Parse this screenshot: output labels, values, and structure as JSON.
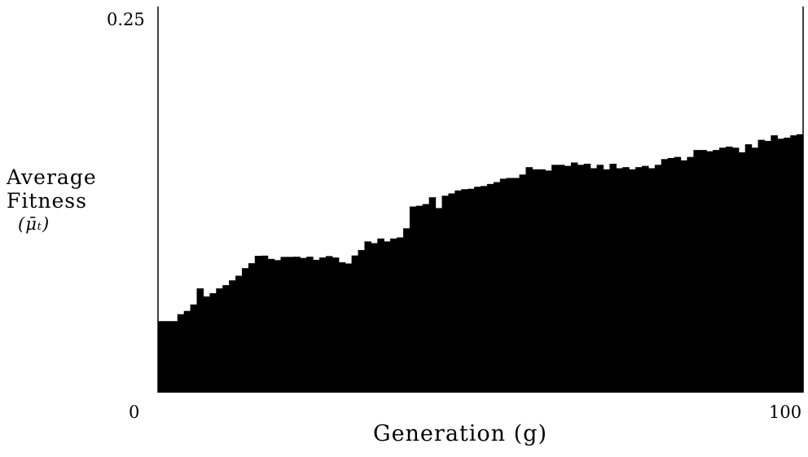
{
  "chart_data": {
    "type": "bar",
    "xlabel": "Generation (g)",
    "ylabel_lines": [
      "Average",
      "Fitness",
      "(μ̄ₜ)"
    ],
    "x_range": [
      0,
      100
    ],
    "ylim": [
      0,
      0.25
    ],
    "x_tick_labels": [
      "0",
      "100"
    ],
    "y_tick_labels": [
      "0",
      "0.25"
    ],
    "grid": false,
    "legend": "none",
    "bar_color": "#000000",
    "x": [
      1,
      2,
      3,
      4,
      5,
      6,
      7,
      8,
      9,
      10,
      11,
      12,
      13,
      14,
      15,
      16,
      17,
      18,
      19,
      20,
      21,
      22,
      23,
      24,
      25,
      26,
      27,
      28,
      29,
      30,
      31,
      32,
      33,
      34,
      35,
      36,
      37,
      38,
      39,
      40,
      41,
      42,
      43,
      44,
      45,
      46,
      47,
      48,
      49,
      50,
      51,
      52,
      53,
      54,
      55,
      56,
      57,
      58,
      59,
      60,
      61,
      62,
      63,
      64,
      65,
      66,
      67,
      68,
      69,
      70,
      71,
      72,
      73,
      74,
      75,
      76,
      77,
      78,
      79,
      80,
      81,
      82,
      83,
      84,
      85,
      86,
      87,
      88,
      89,
      90,
      91,
      92,
      93,
      94,
      95,
      96,
      97,
      98,
      99,
      100
    ],
    "values": [
      0.0463,
      0.0463,
      0.0463,
      0.0508,
      0.0529,
      0.0571,
      0.0675,
      0.0623,
      0.0644,
      0.0675,
      0.0696,
      0.0727,
      0.0757,
      0.0806,
      0.0838,
      0.0886,
      0.0887,
      0.0866,
      0.0858,
      0.0879,
      0.0879,
      0.088,
      0.0872,
      0.088,
      0.086,
      0.0875,
      0.0884,
      0.0875,
      0.0844,
      0.0836,
      0.0888,
      0.0923,
      0.0979,
      0.0968,
      0.0998,
      0.0979,
      0.0998,
      0.1005,
      0.1064,
      0.1205,
      0.121,
      0.1221,
      0.1265,
      0.1195,
      0.1275,
      0.129,
      0.1309,
      0.1317,
      0.132,
      0.1333,
      0.1338,
      0.1351,
      0.1363,
      0.1385,
      0.139,
      0.139,
      0.1412,
      0.146,
      0.1446,
      0.1446,
      0.1438,
      0.1475,
      0.1475,
      0.1468,
      0.149,
      0.1475,
      0.1482,
      0.1453,
      0.1475,
      0.1446,
      0.1482,
      0.1453,
      0.146,
      0.1446,
      0.146,
      0.1468,
      0.1453,
      0.1475,
      0.1512,
      0.1519,
      0.1526,
      0.1504,
      0.1526,
      0.1571,
      0.1571,
      0.1563,
      0.1571,
      0.1586,
      0.1593,
      0.1586,
      0.1556,
      0.1608,
      0.1586,
      0.1637,
      0.163,
      0.1666,
      0.1644,
      0.1651,
      0.1666,
      0.1673
    ]
  }
}
